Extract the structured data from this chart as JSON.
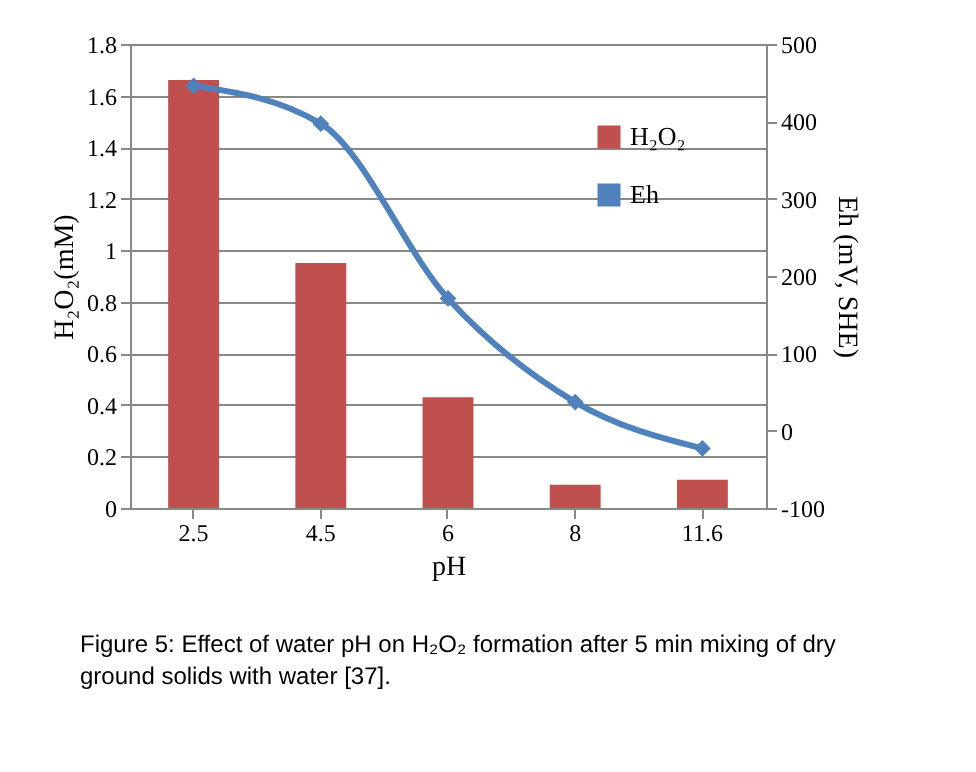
{
  "chart_data": {
    "type": "bar",
    "xlabel": "pH",
    "ylabel": "H₂O₂(mM)",
    "y2label": "Eh (mV, SHE)",
    "categories": [
      "2.5",
      "4.5",
      "6",
      "8",
      "11.6"
    ],
    "series": [
      {
        "name": "H₂O₂",
        "color": "#c0504d",
        "values": [
          1.66,
          0.95,
          0.43,
          0.09,
          0.11
        ]
      },
      {
        "name": "Eh",
        "type": "line",
        "axis": "y2",
        "color": "#4f81bd",
        "values": [
          446,
          397,
          171,
          37,
          -23
        ]
      }
    ],
    "ylim": [
      0,
      1.8
    ],
    "yticks": [
      0,
      0.2,
      0.4,
      0.6,
      0.8,
      1,
      1.2,
      1.4,
      1.6,
      1.8
    ],
    "y2lim": [
      -100,
      500
    ],
    "y2ticks": [
      -100,
      0,
      100,
      200,
      300,
      400,
      500
    ],
    "grid": "y",
    "legend": "top right",
    "marker": "diamond",
    "line_style": "solid",
    "annotations": [
      "Figure 5: Effect of water pH on H₂O₂ formation after 5 min mixing of dry ground solids with water [37]."
    ]
  }
}
